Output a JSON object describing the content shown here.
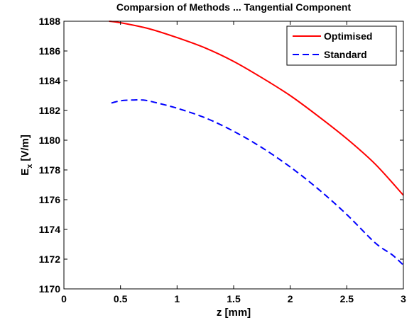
{
  "chart_data": {
    "type": "line",
    "title": "Comparsion of Methods ... Tangential Component",
    "xlabel": "z [mm]",
    "ylabel_main": "E",
    "ylabel_sub": "x",
    "ylabel_unit": "[V/m]",
    "xlim": [
      0,
      3
    ],
    "ylim": [
      1170,
      1188
    ],
    "xticks": [
      0,
      0.5,
      1,
      1.5,
      2,
      2.5,
      3
    ],
    "xtick_labels": [
      "0",
      "0.5",
      "1",
      "1.5",
      "2",
      "2.5",
      "3"
    ],
    "yticks": [
      1170,
      1172,
      1174,
      1176,
      1178,
      1180,
      1182,
      1184,
      1186,
      1188
    ],
    "ytick_labels": [
      "1170",
      "1172",
      "1174",
      "1176",
      "1178",
      "1180",
      "1182",
      "1184",
      "1186",
      "1188"
    ],
    "grid": false,
    "legend_position": "top-right",
    "series": [
      {
        "name": "Optimised",
        "color": "#ff0000",
        "style": "solid",
        "x": [
          0.4,
          0.5,
          0.75,
          1.0,
          1.25,
          1.5,
          1.75,
          2.0,
          2.25,
          2.5,
          2.75,
          3.0
        ],
        "y": [
          1188.0,
          1187.9,
          1187.5,
          1186.9,
          1186.2,
          1185.3,
          1184.2,
          1183.0,
          1181.6,
          1180.1,
          1178.4,
          1176.3
        ]
      },
      {
        "name": "Standard",
        "color": "#0000ff",
        "style": "dashed",
        "x": [
          0.42,
          0.5,
          0.6,
          0.7,
          0.8,
          1.0,
          1.25,
          1.5,
          1.75,
          2.0,
          2.25,
          2.5,
          2.75,
          2.9,
          3.0
        ],
        "y": [
          1182.5,
          1182.65,
          1182.7,
          1182.7,
          1182.55,
          1182.15,
          1181.5,
          1180.6,
          1179.5,
          1178.2,
          1176.7,
          1175.0,
          1173.1,
          1172.3,
          1171.6
        ]
      }
    ]
  }
}
